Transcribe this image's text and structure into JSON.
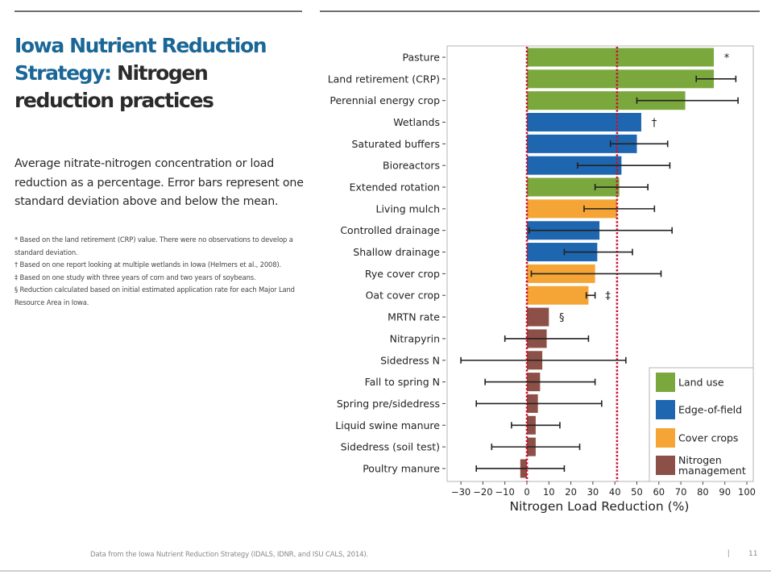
{
  "slide": {
    "title_blue": "Iowa Nutrient Reduction Strategy:",
    "title_dark": " Nitrogen reduction practices",
    "description": "Average nitrate-nitrogen concentration or load reduction as a percentage. Error bars represent one standard deviation above and below the mean.",
    "notes": [
      "* Based on the land retirement (CRP) value. There were no observations to develop a standard deviation.",
      "† Based on one report looking at multiple wetlands in Iowa (Helmers et al., 2008).",
      "‡ Based on one study with three years of corn and two years of soybeans.",
      "§ Reduction calculated based on initial estimated application rate for each Major Land Resource Area in Iowa."
    ],
    "footer_source": "Data from the Iowa Nutrient Reduction Strategy (IDALS, IDNR, and ISU CALS, 2014).",
    "footer_separator": "|",
    "page_number": "11"
  },
  "chart_data": {
    "type": "bar",
    "orientation": "horizontal",
    "title": "",
    "xlabel": "Nitrogen Load Reduction (%)",
    "ylabel": "",
    "xlim": [
      -35,
      102
    ],
    "xticks": [
      -30,
      -20,
      -10,
      0,
      10,
      20,
      30,
      40,
      50,
      60,
      70,
      80,
      90,
      100
    ],
    "xtick_labels": [
      "−30",
      "−20",
      "−10",
      "0",
      "10",
      "20",
      "30",
      "40",
      "50",
      "60",
      "70",
      "80",
      "90",
      "100"
    ],
    "grid": false,
    "reference_lines": [
      {
        "x": 0,
        "style": "dotted",
        "color": "#c8102e"
      },
      {
        "x": 41,
        "style": "dotted",
        "color": "#c8102e"
      }
    ],
    "legend_position": "bottom-right",
    "groups": [
      {
        "name": "Land use",
        "color": "#7aa83c"
      },
      {
        "name": "Edge-of-field",
        "color": "#1f66b0"
      },
      {
        "name": "Cover crops",
        "color": "#f5a535"
      },
      {
        "name": "Nitrogen management",
        "color": "#8c5048"
      }
    ],
    "categories": [
      "Pasture",
      "Land retirement (CRP)",
      "Perennial energy crop",
      "Wetlands",
      "Saturated buffers",
      "Bioreactors",
      "Extended rotation",
      "Living mulch",
      "Controlled drainage",
      "Shallow drainage",
      "Rye cover crop",
      "Oat cover crop",
      "MRTN rate",
      "Nitrapyrin",
      "Sidedress N",
      "Fall to spring N",
      "Spring pre/sidedress",
      "Liquid swine manure",
      "Sidedress (soil test)",
      "Poultry manure"
    ],
    "series": [
      {
        "name": "Land use",
        "indices": [
          0,
          1,
          2,
          6
        ]
      },
      {
        "name": "Edge-of-field",
        "indices": [
          3,
          4,
          5,
          8,
          9
        ]
      },
      {
        "name": "Cover crops",
        "indices": [
          7,
          10,
          11
        ]
      },
      {
        "name": "Nitrogen management",
        "indices": [
          12,
          13,
          14,
          15,
          16,
          17,
          18,
          19
        ]
      }
    ],
    "bars": [
      {
        "label": "Pasture",
        "group": "Land use",
        "value": 85,
        "err_low": null,
        "err_high": null,
        "annotation": "*"
      },
      {
        "label": "Land retirement (CRP)",
        "group": "Land use",
        "value": 85,
        "err_low": 77,
        "err_high": 95,
        "annotation": ""
      },
      {
        "label": "Perennial energy crop",
        "group": "Land use",
        "value": 72,
        "err_low": 50,
        "err_high": 96,
        "annotation": ""
      },
      {
        "label": "Wetlands",
        "group": "Edge-of-field",
        "value": 52,
        "err_low": null,
        "err_high": null,
        "annotation": "†"
      },
      {
        "label": "Saturated buffers",
        "group": "Edge-of-field",
        "value": 50,
        "err_low": 38,
        "err_high": 64,
        "annotation": ""
      },
      {
        "label": "Bioreactors",
        "group": "Edge-of-field",
        "value": 43,
        "err_low": 23,
        "err_high": 65,
        "annotation": ""
      },
      {
        "label": "Extended rotation",
        "group": "Land use",
        "value": 42,
        "err_low": 31,
        "err_high": 55,
        "annotation": ""
      },
      {
        "label": "Living mulch",
        "group": "Cover crops",
        "value": 41,
        "err_low": 26,
        "err_high": 58,
        "annotation": ""
      },
      {
        "label": "Controlled drainage",
        "group": "Edge-of-field",
        "value": 33,
        "err_low": 1,
        "err_high": 66,
        "annotation": ""
      },
      {
        "label": "Shallow drainage",
        "group": "Edge-of-field",
        "value": 32,
        "err_low": 17,
        "err_high": 48,
        "annotation": ""
      },
      {
        "label": "Rye cover crop",
        "group": "Cover crops",
        "value": 31,
        "err_low": 2,
        "err_high": 61,
        "annotation": ""
      },
      {
        "label": "Oat cover crop",
        "group": "Cover crops",
        "value": 28,
        "err_low": 27,
        "err_high": 31,
        "annotation": "‡"
      },
      {
        "label": "MRTN rate",
        "group": "Nitrogen management",
        "value": 10,
        "err_low": null,
        "err_high": null,
        "annotation": "§"
      },
      {
        "label": "Nitrapyrin",
        "group": "Nitrogen management",
        "value": 9,
        "err_low": -10,
        "err_high": 28,
        "annotation": ""
      },
      {
        "label": "Sidedress N",
        "group": "Nitrogen management",
        "value": 7,
        "err_low": -30,
        "err_high": 45,
        "annotation": ""
      },
      {
        "label": "Fall to spring N",
        "group": "Nitrogen management",
        "value": 6,
        "err_low": -19,
        "err_high": 31,
        "annotation": ""
      },
      {
        "label": "Spring pre/sidedress",
        "group": "Nitrogen management",
        "value": 5,
        "err_low": -23,
        "err_high": 34,
        "annotation": ""
      },
      {
        "label": "Liquid swine manure",
        "group": "Nitrogen management",
        "value": 4,
        "err_low": -7,
        "err_high": 15,
        "annotation": ""
      },
      {
        "label": "Sidedress (soil test)",
        "group": "Nitrogen management",
        "value": 4,
        "err_low": -16,
        "err_high": 24,
        "annotation": ""
      },
      {
        "label": "Poultry manure",
        "group": "Nitrogen management",
        "value": -3,
        "err_low": -23,
        "err_high": 17,
        "annotation": ""
      }
    ]
  }
}
